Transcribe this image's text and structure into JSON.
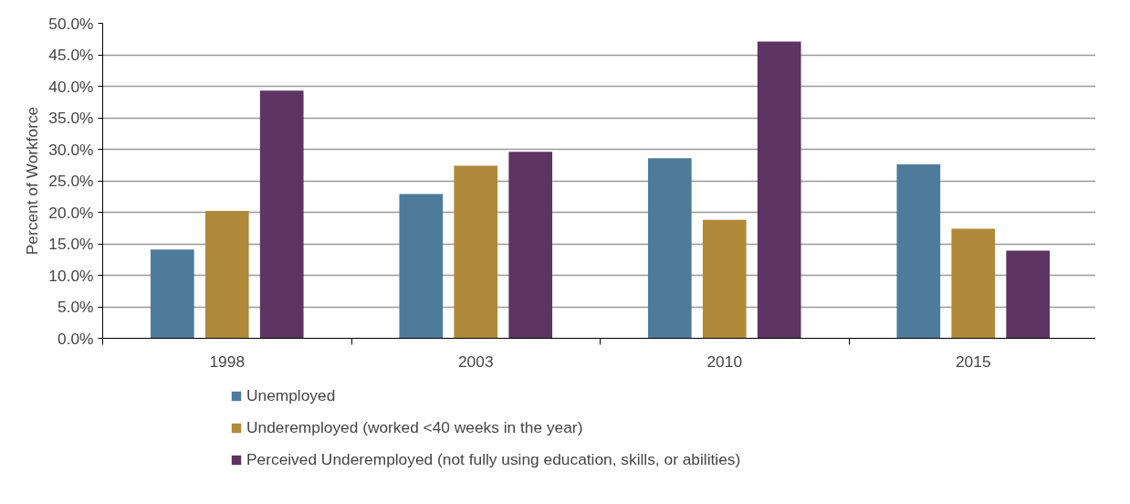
{
  "chart_data": {
    "type": "bar",
    "ylabel": "Percent of Workforce",
    "categories": [
      "1998",
      "2003",
      "2010",
      "2015"
    ],
    "series": [
      {
        "name": "Unemployed",
        "color": "#4f7b9b",
        "values": [
          14.1,
          22.9,
          28.6,
          27.6
        ]
      },
      {
        "name": "Underemployed (worked <40 weeks in the year)",
        "color": "#b08a3a",
        "values": [
          20.2,
          27.4,
          18.8,
          17.4
        ]
      },
      {
        "name": "Perceived Underemployed (not fully using education, skills, or abilities)",
        "color": "#5d3462",
        "values": [
          39.3,
          29.6,
          47.1,
          13.9
        ]
      }
    ],
    "ylim": [
      0,
      50
    ],
    "yticks": [
      {
        "value": 0,
        "label": "0.0%"
      },
      {
        "value": 5,
        "label": "5.0%"
      },
      {
        "value": 10,
        "label": "10.0%"
      },
      {
        "value": 15,
        "label": "15.0%"
      },
      {
        "value": 20,
        "label": "20.0%"
      },
      {
        "value": 25,
        "label": "25.0%"
      },
      {
        "value": 30,
        "label": "30.0%"
      },
      {
        "value": 35,
        "label": "35.0%"
      },
      {
        "value": 40,
        "label": "40.0%"
      },
      {
        "value": 45,
        "label": "45.0%"
      },
      {
        "value": 50,
        "label": "50.0%"
      }
    ],
    "grid": "y",
    "legend": "bottom"
  }
}
